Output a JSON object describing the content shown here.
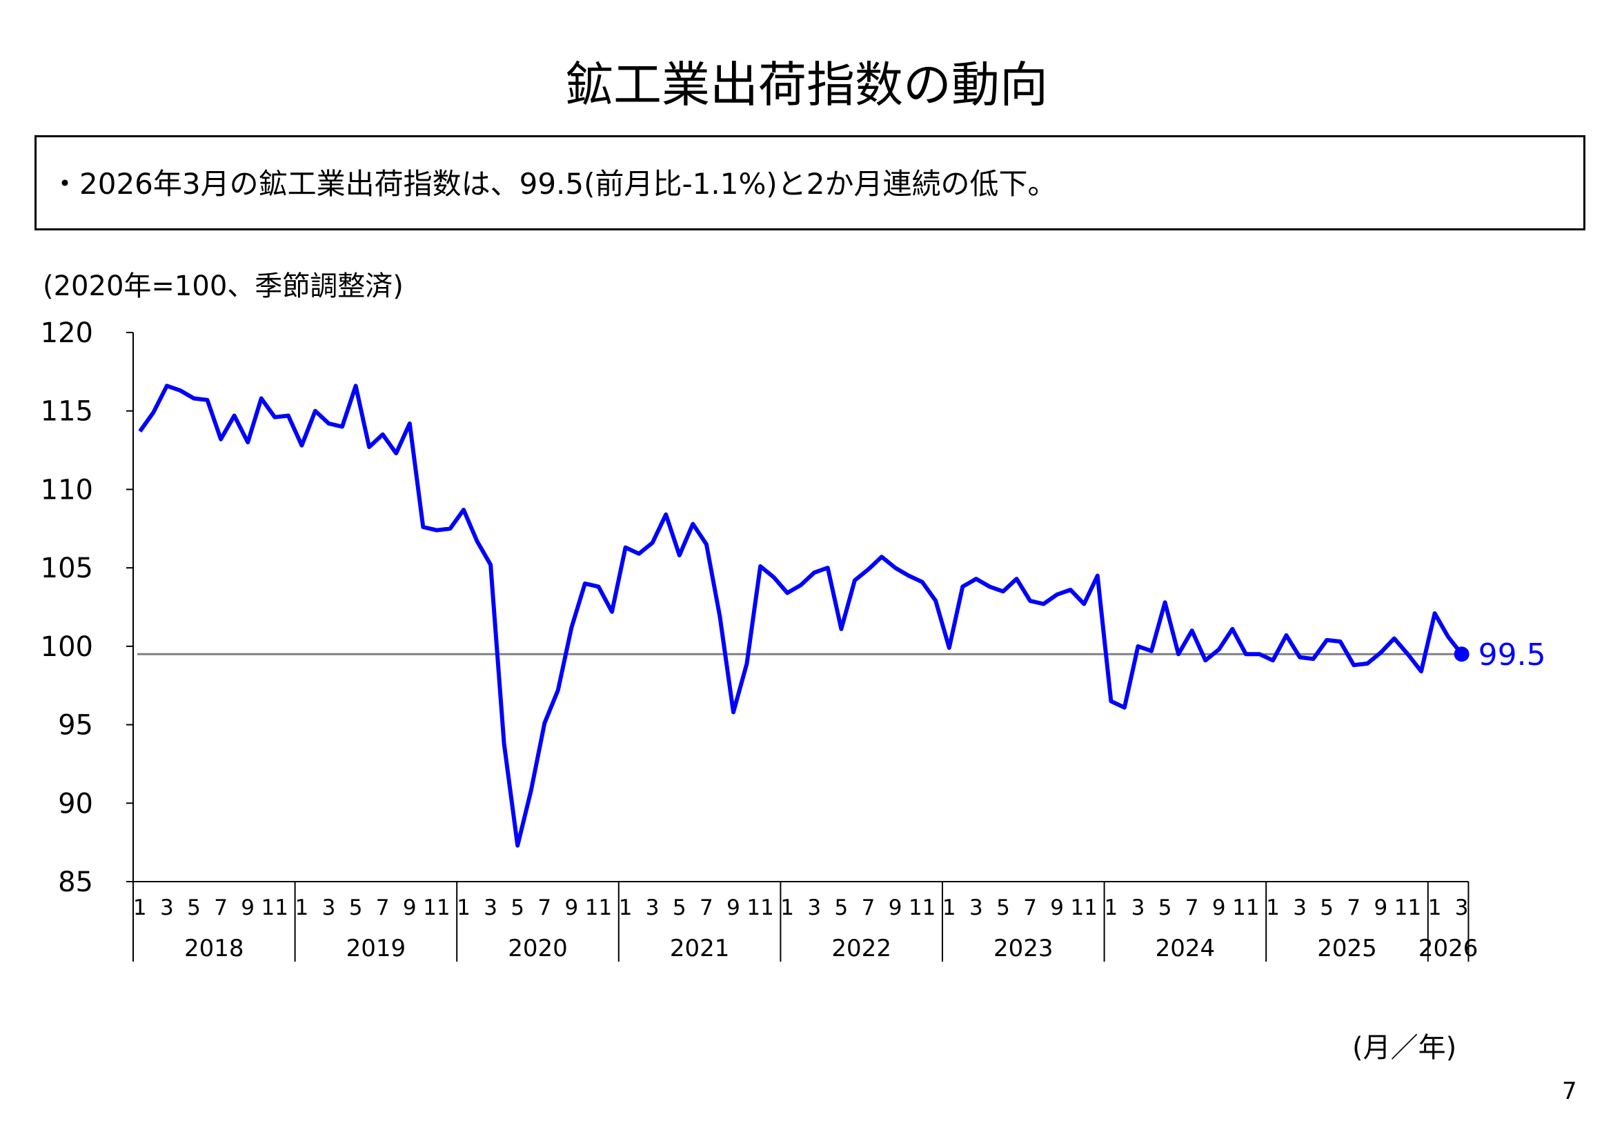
{
  "title": "鉱工業出荷指数の動向",
  "summary": "・2026年3月の鉱工業出荷指数は、99.5(前月比-1.1%)と2か月連続の低下。",
  "unit_note": "(2020年=100、季節調整済)",
  "axis_caption": "(月／年)",
  "page_number": "7",
  "chart_data": {
    "type": "line",
    "title": "",
    "xlabel": "(月／年)",
    "ylabel": "(2020年=100、季節調整済)",
    "ylim": [
      85,
      120
    ],
    "yticks": [
      85,
      90,
      95,
      100,
      105,
      110,
      115,
      120
    ],
    "month_tick_labels": [
      "1",
      "3",
      "5",
      "7",
      "9",
      "11"
    ],
    "years": [
      "2018",
      "2019",
      "2020",
      "2021",
      "2022",
      "2023",
      "2024",
      "2025",
      "2026"
    ],
    "grid": false,
    "legend": "none",
    "line_color": "#0000ff",
    "reference_line": {
      "value": 99.5,
      "color": "#808080"
    },
    "last_value_label": "99.5",
    "series": [
      {
        "start": "2018-01",
        "values": [
          113.7,
          114.9,
          116.6,
          116.3,
          115.8,
          115.7,
          113.2,
          114.7,
          113.0,
          115.8,
          114.6,
          114.7,
          112.8,
          115.0,
          114.2,
          114.0,
          116.6,
          112.7,
          113.5,
          112.3,
          114.2,
          107.6,
          107.4,
          107.5,
          108.7,
          106.7,
          105.2,
          93.8,
          87.3,
          90.8,
          95.1,
          97.2,
          101.2,
          104.0,
          103.8,
          102.2,
          106.3,
          105.9,
          106.6,
          108.4,
          105.8,
          107.8,
          106.5,
          101.9,
          95.8,
          98.9,
          105.1,
          104.4,
          103.4,
          103.9,
          104.7,
          105.0,
          101.1,
          104.2,
          104.9,
          105.7,
          105.0,
          104.5,
          104.1,
          102.9,
          99.9,
          103.8,
          104.3,
          103.8,
          103.5,
          104.3,
          102.9,
          102.7,
          103.3,
          103.6,
          102.7,
          104.5,
          96.5,
          96.1,
          100.0,
          99.7,
          102.8,
          99.5,
          101.0,
          99.1,
          99.8,
          101.1,
          99.5,
          99.5,
          99.1,
          100.7,
          99.3,
          99.2,
          100.4,
          100.3,
          98.8,
          98.9,
          99.6,
          100.5,
          99.5,
          98.4,
          102.1,
          100.6,
          99.5
        ]
      }
    ]
  }
}
